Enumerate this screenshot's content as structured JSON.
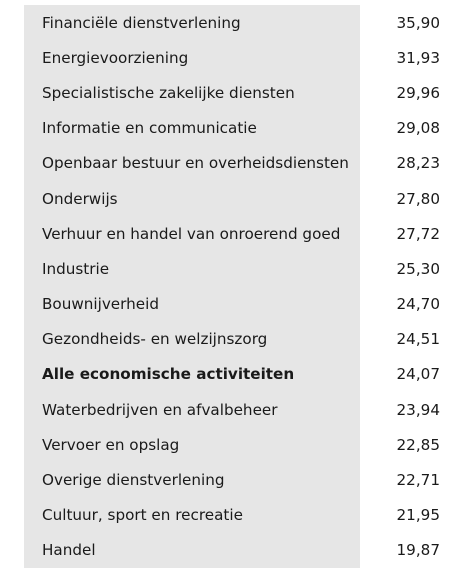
{
  "rows": [
    {
      "label": "Financiële dienstverlening",
      "value": "35,90",
      "bold": false
    },
    {
      "label": "Energievoorziening",
      "value": "31,93",
      "bold": false
    },
    {
      "label": "Specialistische zakelijke diensten",
      "value": "29,96",
      "bold": false
    },
    {
      "label": "Informatie en communicatie",
      "value": "29,08",
      "bold": false
    },
    {
      "label": "Openbaar bestuur en overheidsdiensten",
      "value": "28,23",
      "bold": false
    },
    {
      "label": "Onderwijs",
      "value": "27,80",
      "bold": false
    },
    {
      "label": "Verhuur en handel van onroerend goed",
      "value": "27,72",
      "bold": false
    },
    {
      "label": "Industrie",
      "value": "25,30",
      "bold": false
    },
    {
      "label": "Bouwnijverheid",
      "value": "24,70",
      "bold": false
    },
    {
      "label": "Gezondheids- en welzijnszorg",
      "value": "24,51",
      "bold": false
    },
    {
      "label": "Alle economische activiteiten",
      "value": "24,07",
      "bold": true
    },
    {
      "label": "Waterbedrijven en afvalbeheer",
      "value": "23,94",
      "bold": false
    },
    {
      "label": "Vervoer en opslag",
      "value": "22,85",
      "bold": false
    },
    {
      "label": "Overige dienstverlening",
      "value": "22,71",
      "bold": false
    },
    {
      "label": "Cultuur, sport en recreatie",
      "value": "21,95",
      "bold": false
    },
    {
      "label": "Handel",
      "value": "19,87",
      "bold": false
    }
  ]
}
